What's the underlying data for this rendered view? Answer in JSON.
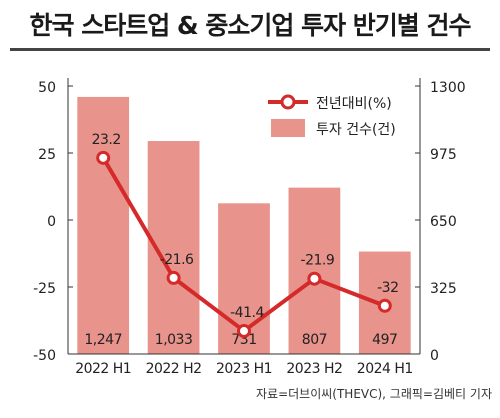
{
  "title": "한국 스타트업 & 중소기업 투자 반기별 건수",
  "source": "자료=더브이씨(THEVC), 그래픽=김베티 기자",
  "colors": {
    "bar": "#e8938b",
    "line": "#d42a2a",
    "axis": "#333333"
  },
  "chart_data": {
    "type": "bar",
    "categories": [
      "2022 H1",
      "2022 H2",
      "2023 H1",
      "2023 H2",
      "2024 H1"
    ],
    "bar_labels": [
      "1,247",
      "1,033",
      "731",
      "807",
      "497"
    ],
    "line_labels": [
      "23.2",
      "-21.6",
      "-41.4",
      "-21.9",
      "-32"
    ],
    "series": [
      {
        "name": "투자 건수(건)",
        "type": "bar",
        "axis": "right",
        "values": [
          1247,
          1033,
          731,
          807,
          497
        ]
      },
      {
        "name": "전년대비(%)",
        "type": "line",
        "axis": "left",
        "values": [
          23.2,
          -21.6,
          -41.4,
          -21.9,
          -32
        ]
      }
    ],
    "left_axis": {
      "range": [
        -50,
        50
      ],
      "ticks": [
        "50",
        "25",
        "0",
        "-25",
        "-50"
      ]
    },
    "right_axis": {
      "range": [
        0,
        1300
      ],
      "ticks": [
        "1300",
        "975",
        "650",
        "325",
        "0"
      ]
    },
    "legend_position": "top-right",
    "grid": false
  }
}
